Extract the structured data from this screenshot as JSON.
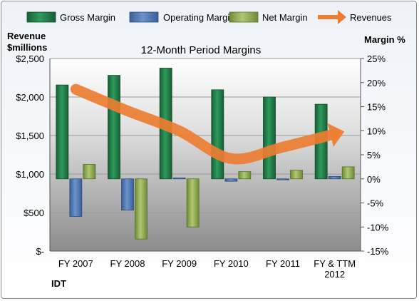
{
  "chart_data": {
    "type": "bar",
    "title": "12-Month Period Margins",
    "company": "IDT",
    "categories": [
      "FY 2007",
      "FY 2008",
      "FY 2009",
      "FY 2010",
      "FY 2011",
      "FY & TTM 2012"
    ],
    "series": [
      {
        "name": "Gross Margin",
        "axis": "right",
        "values": [
          19.5,
          21.5,
          23.0,
          18.5,
          17.0,
          15.5
        ]
      },
      {
        "name": "Operating Margin",
        "axis": "right",
        "values": [
          -7.8,
          -6.5,
          0.2,
          -0.5,
          -0.2,
          0.5
        ]
      },
      {
        "name": "Net Margin",
        "axis": "right",
        "values": [
          3.0,
          -12.5,
          -10.0,
          1.5,
          1.8,
          2.5
        ]
      },
      {
        "name": "Revenues",
        "type": "line",
        "axis": "left",
        "values": [
          2100,
          1820,
          1560,
          1200,
          1350,
          1520
        ]
      }
    ],
    "left_axis": {
      "label_line1": "Revenue",
      "label_line2": "$millions",
      "ylim": [
        0,
        2500
      ],
      "ticks": [
        "$-",
        "$500",
        "$1,000",
        "$1,500",
        "$2,000",
        "$2,500"
      ],
      "tick_values": [
        0,
        500,
        1000,
        1500,
        2000,
        2500
      ]
    },
    "right_axis": {
      "label": "Margin %",
      "ylim": [
        -15,
        25
      ],
      "ticks": [
        "-15%",
        "-10%",
        "-5%",
        "0%",
        "5%",
        "10%",
        "15%",
        "20%",
        "25%"
      ],
      "tick_values": [
        -15,
        -10,
        -5,
        0,
        5,
        10,
        15,
        20,
        25
      ]
    },
    "x_tick_labels": [
      [
        "FY 2007"
      ],
      [
        "FY 2008"
      ],
      [
        "FY 2009"
      ],
      [
        "FY 2010"
      ],
      [
        "FY 2011"
      ],
      [
        "FY & TTM",
        "2012"
      ]
    ],
    "legend_position": "top",
    "grid": true
  },
  "colors": {
    "gross": "#1e7a46",
    "operating": "#4a72b0",
    "net": "#8faa4f",
    "revenue": "#ed7d31",
    "grid": "#9a9a9a"
  }
}
